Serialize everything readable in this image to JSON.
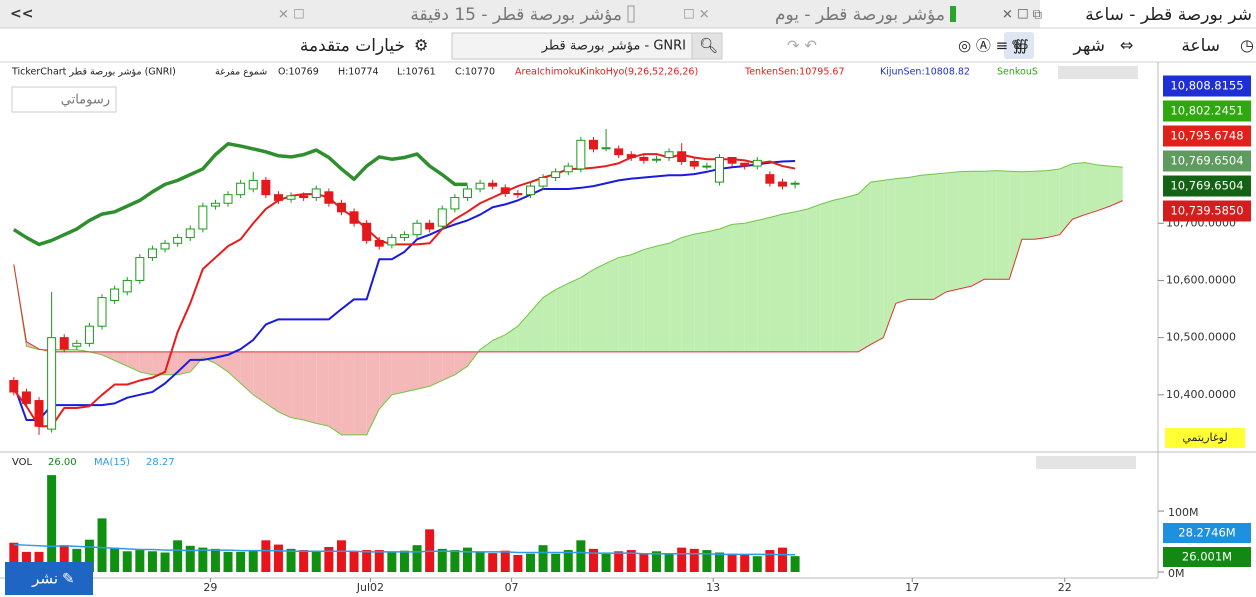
{
  "tabs": {
    "collapse": "<<",
    "items": [
      "شر بورصة قطر - ساعة",
      "مؤشر بورصة قطر - يوم",
      "مؤشر بورصة قطر - 15 دقيقة"
    ]
  },
  "toolbar": {
    "interval": "ساعة",
    "period": "شهر",
    "search": "مؤشر بورصة قطر - GNRI",
    "advanced": "خيارات متقدمة"
  },
  "info": [
    {
      "text": "TickerChart مؤشر بورصة قطر (GNRI)",
      "color": "#222222"
    },
    {
      "text": "شموع مفرغة",
      "color": "#222222"
    },
    {
      "text": "O:10769",
      "color": "#222222"
    },
    {
      "text": "H:10774",
      "color": "#222222"
    },
    {
      "text": "L:10761",
      "color": "#222222"
    },
    {
      "text": "C:10770",
      "color": "#222222"
    },
    {
      "text": "AreaIchimokuKinkoHyo(9,26,52,26,26)",
      "color": "#e0201b"
    },
    {
      "text": "TenkenSen:10795.67",
      "color": "#e0201b"
    },
    {
      "text": "KijunSen:10808.82",
      "color": "#1f2fd6"
    },
    {
      "text": "SenkouS",
      "color": "#2fa80f"
    }
  ],
  "drawings_button": "رسوماتي",
  "log_button": "لوغاريتمي",
  "share_button": "نشر",
  "chart_data": [
    {
      "type": "candlestick",
      "xlim": [
        -0.7,
        90.8
      ],
      "ylim": [
        10300,
        10975
      ],
      "yticks": [
        {
          "value": 10400,
          "label": "10,400.0000"
        },
        {
          "value": 10500,
          "label": "10,500.0000"
        },
        {
          "value": 10600,
          "label": "10,600.0000"
        },
        {
          "value": 10700,
          "label": "10,700.0000"
        }
      ],
      "xticks": [
        {
          "value": 15.6,
          "label": "29"
        },
        {
          "value": 28.3,
          "label": "Jul02"
        },
        {
          "value": 39.5,
          "label": "07"
        },
        {
          "value": 55.5,
          "label": "13"
        },
        {
          "value": 71.3,
          "label": "17"
        },
        {
          "value": 83.4,
          "label": "22"
        }
      ],
      "up_color": "#1a9c1a",
      "down_color": "#e4191b",
      "open": [
        10425,
        10405,
        10390,
        10340,
        10500,
        10485,
        10490,
        10520,
        10565,
        10580,
        10600,
        10640,
        10655,
        10665,
        10675,
        10690,
        10730,
        10735,
        10750,
        10760,
        10775,
        10750,
        10742,
        10748,
        10745,
        10755,
        10735,
        10720,
        10700,
        10670,
        10662,
        10675,
        10680,
        10700,
        10695,
        10725,
        10745,
        10760,
        10770,
        10762,
        10752,
        10750,
        10765,
        10780,
        10790,
        10795,
        10845,
        10832,
        10830,
        10820,
        10815,
        10812,
        10815,
        10825,
        10808,
        10800,
        10772,
        10815,
        10805,
        10800,
        10785,
        10772,
        10769
      ],
      "high": [
        10431,
        10411,
        10396,
        10580,
        10506,
        10496,
        10526,
        10576,
        10591,
        10606,
        10646,
        10661,
        10671,
        10681,
        10696,
        10736,
        10741,
        10756,
        10776,
        10790,
        10781,
        10756,
        10754,
        10754,
        10766,
        10761,
        10741,
        10726,
        10706,
        10676,
        10681,
        10686,
        10706,
        10706,
        10731,
        10751,
        10766,
        10776,
        10776,
        10768,
        10758,
        10771,
        10786,
        10796,
        10806,
        10851,
        10851,
        10865,
        10836,
        10826,
        10821,
        10818,
        10831,
        10840,
        10814,
        10806,
        10821,
        10811,
        10806,
        10816,
        10791,
        10778,
        10774
      ],
      "low": [
        10399,
        10379,
        10330,
        10334,
        10474,
        10479,
        10484,
        10514,
        10559,
        10574,
        10594,
        10634,
        10649,
        10659,
        10669,
        10684,
        10724,
        10729,
        10744,
        10754,
        10744,
        10734,
        10736,
        10739,
        10739,
        10729,
        10714,
        10694,
        10664,
        10654,
        10656,
        10669,
        10674,
        10684,
        10689,
        10719,
        10739,
        10754,
        10759,
        10746,
        10744,
        10744,
        10759,
        10774,
        10784,
        10789,
        10824,
        10826,
        10814,
        10809,
        10804,
        10806,
        10809,
        10802,
        10794,
        10794,
        10766,
        10799,
        10794,
        10794,
        10764,
        10759,
        10761
      ],
      "close": [
        10405,
        10385,
        10345,
        10500,
        10480,
        10490,
        10520,
        10570,
        10585,
        10600,
        10640,
        10655,
        10665,
        10675,
        10690,
        10730,
        10735,
        10750,
        10770,
        10775,
        10750,
        10740,
        10748,
        10745,
        10760,
        10735,
        10720,
        10700,
        10670,
        10660,
        10675,
        10680,
        10700,
        10690,
        10725,
        10745,
        10760,
        10770,
        10765,
        10752,
        10750,
        10765,
        10780,
        10790,
        10800,
        10845,
        10830,
        10832,
        10820,
        10815,
        10810,
        10812,
        10825,
        10808,
        10800,
        10800,
        10815,
        10805,
        10800,
        10810,
        10770,
        10765,
        10770
      ],
      "cloud": {
        "up_fill": "#bfeeb0",
        "down_fill": "#f4b8b8",
        "a": {
          "color": "#72c445",
          "values": [
            10628,
            10485,
            10479,
            10479,
            10479,
            10479,
            10475,
            10470,
            10460,
            10450,
            10440,
            10435,
            10435,
            10435,
            10440,
            10465,
            10455,
            10440,
            10420,
            10400,
            10385,
            10370,
            10360,
            10356,
            10350,
            10345,
            10330,
            10330,
            10330,
            10375,
            10400,
            10405,
            10410,
            10415,
            10425,
            10435,
            10450,
            10479,
            10495,
            10505,
            10520,
            10545,
            10570,
            10584,
            10595,
            10605,
            10619,
            10630,
            10640,
            10645,
            10654,
            10660,
            10665,
            10675,
            10681,
            10685,
            10690,
            10698,
            10700,
            10705,
            10710,
            10716,
            10720,
            10725,
            10733,
            10740,
            10745,
            10751,
            10772,
            10775,
            10778,
            10780,
            10784,
            10786,
            10788,
            10790,
            10791,
            10791,
            10792,
            10791,
            10790,
            10791,
            10792,
            10795,
            10804,
            10806,
            10802,
            10800,
            10798
          ]
        },
        "b": {
          "color": "#dd3333",
          "values": [
            10628,
            10493,
            10480,
            10475,
            10475,
            10475,
            10475,
            10475,
            10475,
            10475,
            10475,
            10475,
            10475,
            10475,
            10475,
            10475,
            10475,
            10475,
            10475,
            10475,
            10475,
            10475,
            10475,
            10475,
            10475,
            10475,
            10475,
            10475,
            10475,
            10475,
            10475,
            10475,
            10475,
            10475,
            10475,
            10475,
            10475,
            10475,
            10475,
            10475,
            10475,
            10475,
            10475,
            10475,
            10475,
            10475,
            10475,
            10475,
            10475,
            10475,
            10475,
            10475,
            10475,
            10475,
            10475,
            10475,
            10475,
            10475,
            10475,
            10475,
            10475,
            10475,
            10475,
            10475,
            10475,
            10475,
            10475,
            10475,
            10488,
            10500,
            10560,
            10567,
            10567,
            10567,
            10580,
            10585,
            10590,
            10602,
            10602,
            10602,
            10672,
            10672,
            10675,
            10680,
            10707,
            10715,
            10722,
            10730,
            10739.585
          ]
        }
      },
      "lines": [
        {
          "color": "#2f8f2f",
          "width": 3.5,
          "values": [
            10689,
            10675,
            10663,
            10670,
            10680,
            10690,
            10705,
            10716,
            10720,
            10730,
            10740,
            10755,
            10768,
            10775,
            10785,
            10795,
            10820,
            10839,
            10835,
            10830,
            10825,
            10818,
            10816,
            10820,
            10828,
            10815,
            10795,
            10777,
            10800,
            10816,
            10812,
            10815,
            10821,
            10800,
            10785,
            10768,
            10768
          ]
        },
        {
          "color": "#1a1ae0",
          "width": 2,
          "values": [
            10418,
            10356,
            10356,
            10382,
            10382,
            10382,
            10382,
            10382,
            10385,
            10395,
            10400,
            10405,
            10420,
            10440,
            10461,
            10461,
            10465,
            10470,
            10480,
            10496,
            10523,
            10532,
            10532,
            10532,
            10532,
            10532,
            10550,
            10567,
            10567,
            10637,
            10637,
            10650,
            10672,
            10680,
            10690,
            10698,
            10705,
            10715,
            10728,
            10733,
            10740,
            10750,
            10760,
            10760,
            10760,
            10762,
            10765,
            10770,
            10775,
            10778,
            10780,
            10782,
            10784,
            10784,
            10786,
            10790,
            10795,
            10798,
            10800,
            10803,
            10806,
            10808,
            10808.82
          ]
        },
        {
          "color": "#e81c1c",
          "width": 2,
          "values": [
            10409,
            10380,
            10345,
            10345,
            10377,
            10377,
            10380,
            10400,
            10418,
            10418,
            10425,
            10430,
            10440,
            10510,
            10560,
            10620,
            10640,
            10660,
            10672,
            10700,
            10725,
            10740,
            10748,
            10751,
            10751,
            10745,
            10725,
            10710,
            10690,
            10670,
            10663,
            10663,
            10663,
            10665,
            10690,
            10707,
            10720,
            10735,
            10745,
            10755,
            10765,
            10772,
            10780,
            10786,
            10795,
            10795,
            10797,
            10800,
            10805,
            10815,
            10821,
            10821,
            10815,
            10820,
            10815,
            10812,
            10812,
            10812,
            10810,
            10805,
            10808,
            10800,
            10795.67
          ]
        }
      ],
      "value_boxes": [
        {
          "label": "10,808.8155",
          "color": "#1f2fd6"
        },
        {
          "label": "10,802.2451",
          "color": "#2fa80f"
        },
        {
          "label": "10,795.6748",
          "color": "#e0201b"
        },
        {
          "label": "10,769.6504",
          "color": "#5f9a5f"
        },
        {
          "label": "10,769.6504",
          "color": "#146314"
        },
        {
          "label": "10,739.5850",
          "color": "#d41d1d"
        }
      ]
    },
    {
      "type": "bar",
      "legend": [
        {
          "text": "VOL",
          "color": "#222222"
        },
        {
          "text": "26.00",
          "color": "#118811"
        },
        {
          "text": "MA(15)",
          "color": "#2e9be6"
        },
        {
          "text": "28.27",
          "color": "#2e9be6"
        }
      ],
      "ylim": [
        0,
        192
      ],
      "yticks": [
        {
          "value": 0,
          "label": "0M"
        },
        {
          "value": 100,
          "label": "100M"
        }
      ],
      "up_color": "#109010",
      "down_color": "#e8141b",
      "values": [
        48,
        33,
        33,
        159,
        44,
        38,
        53,
        88,
        40,
        34,
        36,
        34,
        32,
        52,
        43,
        40,
        38,
        33,
        33,
        36,
        52,
        45,
        38,
        36,
        33,
        41,
        52,
        34,
        36,
        36,
        32,
        35,
        44,
        70,
        38,
        36,
        40,
        32,
        31,
        35,
        28,
        30,
        44,
        30,
        36,
        52,
        38,
        30,
        34,
        36,
        30,
        34,
        30,
        40,
        38,
        36,
        32,
        30,
        28,
        26,
        36,
        40,
        26
      ],
      "ma": {
        "color": "#2e9be6",
        "values": [
          45,
          44,
          43,
          42,
          43,
          42,
          41,
          40,
          39,
          38,
          37,
          37,
          36,
          36,
          35,
          36,
          36,
          36,
          35,
          35,
          35,
          35,
          34,
          34,
          34,
          34,
          34,
          34,
          33,
          33,
          33,
          33,
          33,
          34,
          34,
          34,
          33,
          33,
          33,
          33,
          32,
          32,
          32,
          32,
          32,
          32,
          31,
          31,
          31,
          31,
          30,
          30,
          30,
          30,
          30,
          30,
          29,
          29,
          29,
          29,
          29,
          28.5,
          28.27
        ]
      },
      "value_boxes": [
        {
          "label": "28.2746M",
          "color": "#1e90e0"
        },
        {
          "label": "26.001M",
          "color": "#128a12"
        }
      ]
    }
  ]
}
